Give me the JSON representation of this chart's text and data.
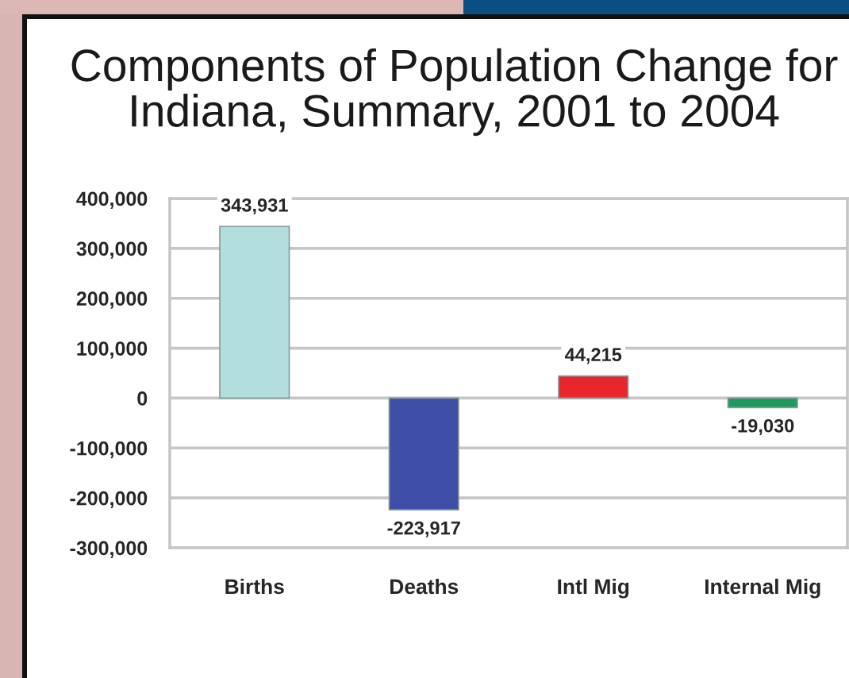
{
  "chart_data": {
    "type": "bar",
    "title": "Components of Population Change for\nIndiana, Summary, 2001 to 2004",
    "categories": [
      "Births",
      "Deaths",
      "Intl Mig",
      "Internal Mig"
    ],
    "values": [
      343931,
      -223917,
      44215,
      -19030
    ],
    "colors": [
      "#b2dede",
      "#3f4ea6",
      "#e8262b",
      "#1e9a5c"
    ],
    "value_labels": [
      "343,931",
      "-223,917",
      "44,215",
      "-19,030"
    ],
    "ylim": [
      -300000,
      400000
    ],
    "yticks": [
      {
        "value": -300000,
        "label": "-300,000"
      },
      {
        "value": -200000,
        "label": "-200,000"
      },
      {
        "value": -100000,
        "label": "-100,000"
      },
      0,
      {
        "value": 100000,
        "label": "100,000"
      },
      {
        "value": 200000,
        "label": "200,000"
      },
      {
        "value": 300000,
        "label": "300,000"
      },
      {
        "value": 400000,
        "label": "400,000"
      }
    ],
    "grid": "y"
  }
}
